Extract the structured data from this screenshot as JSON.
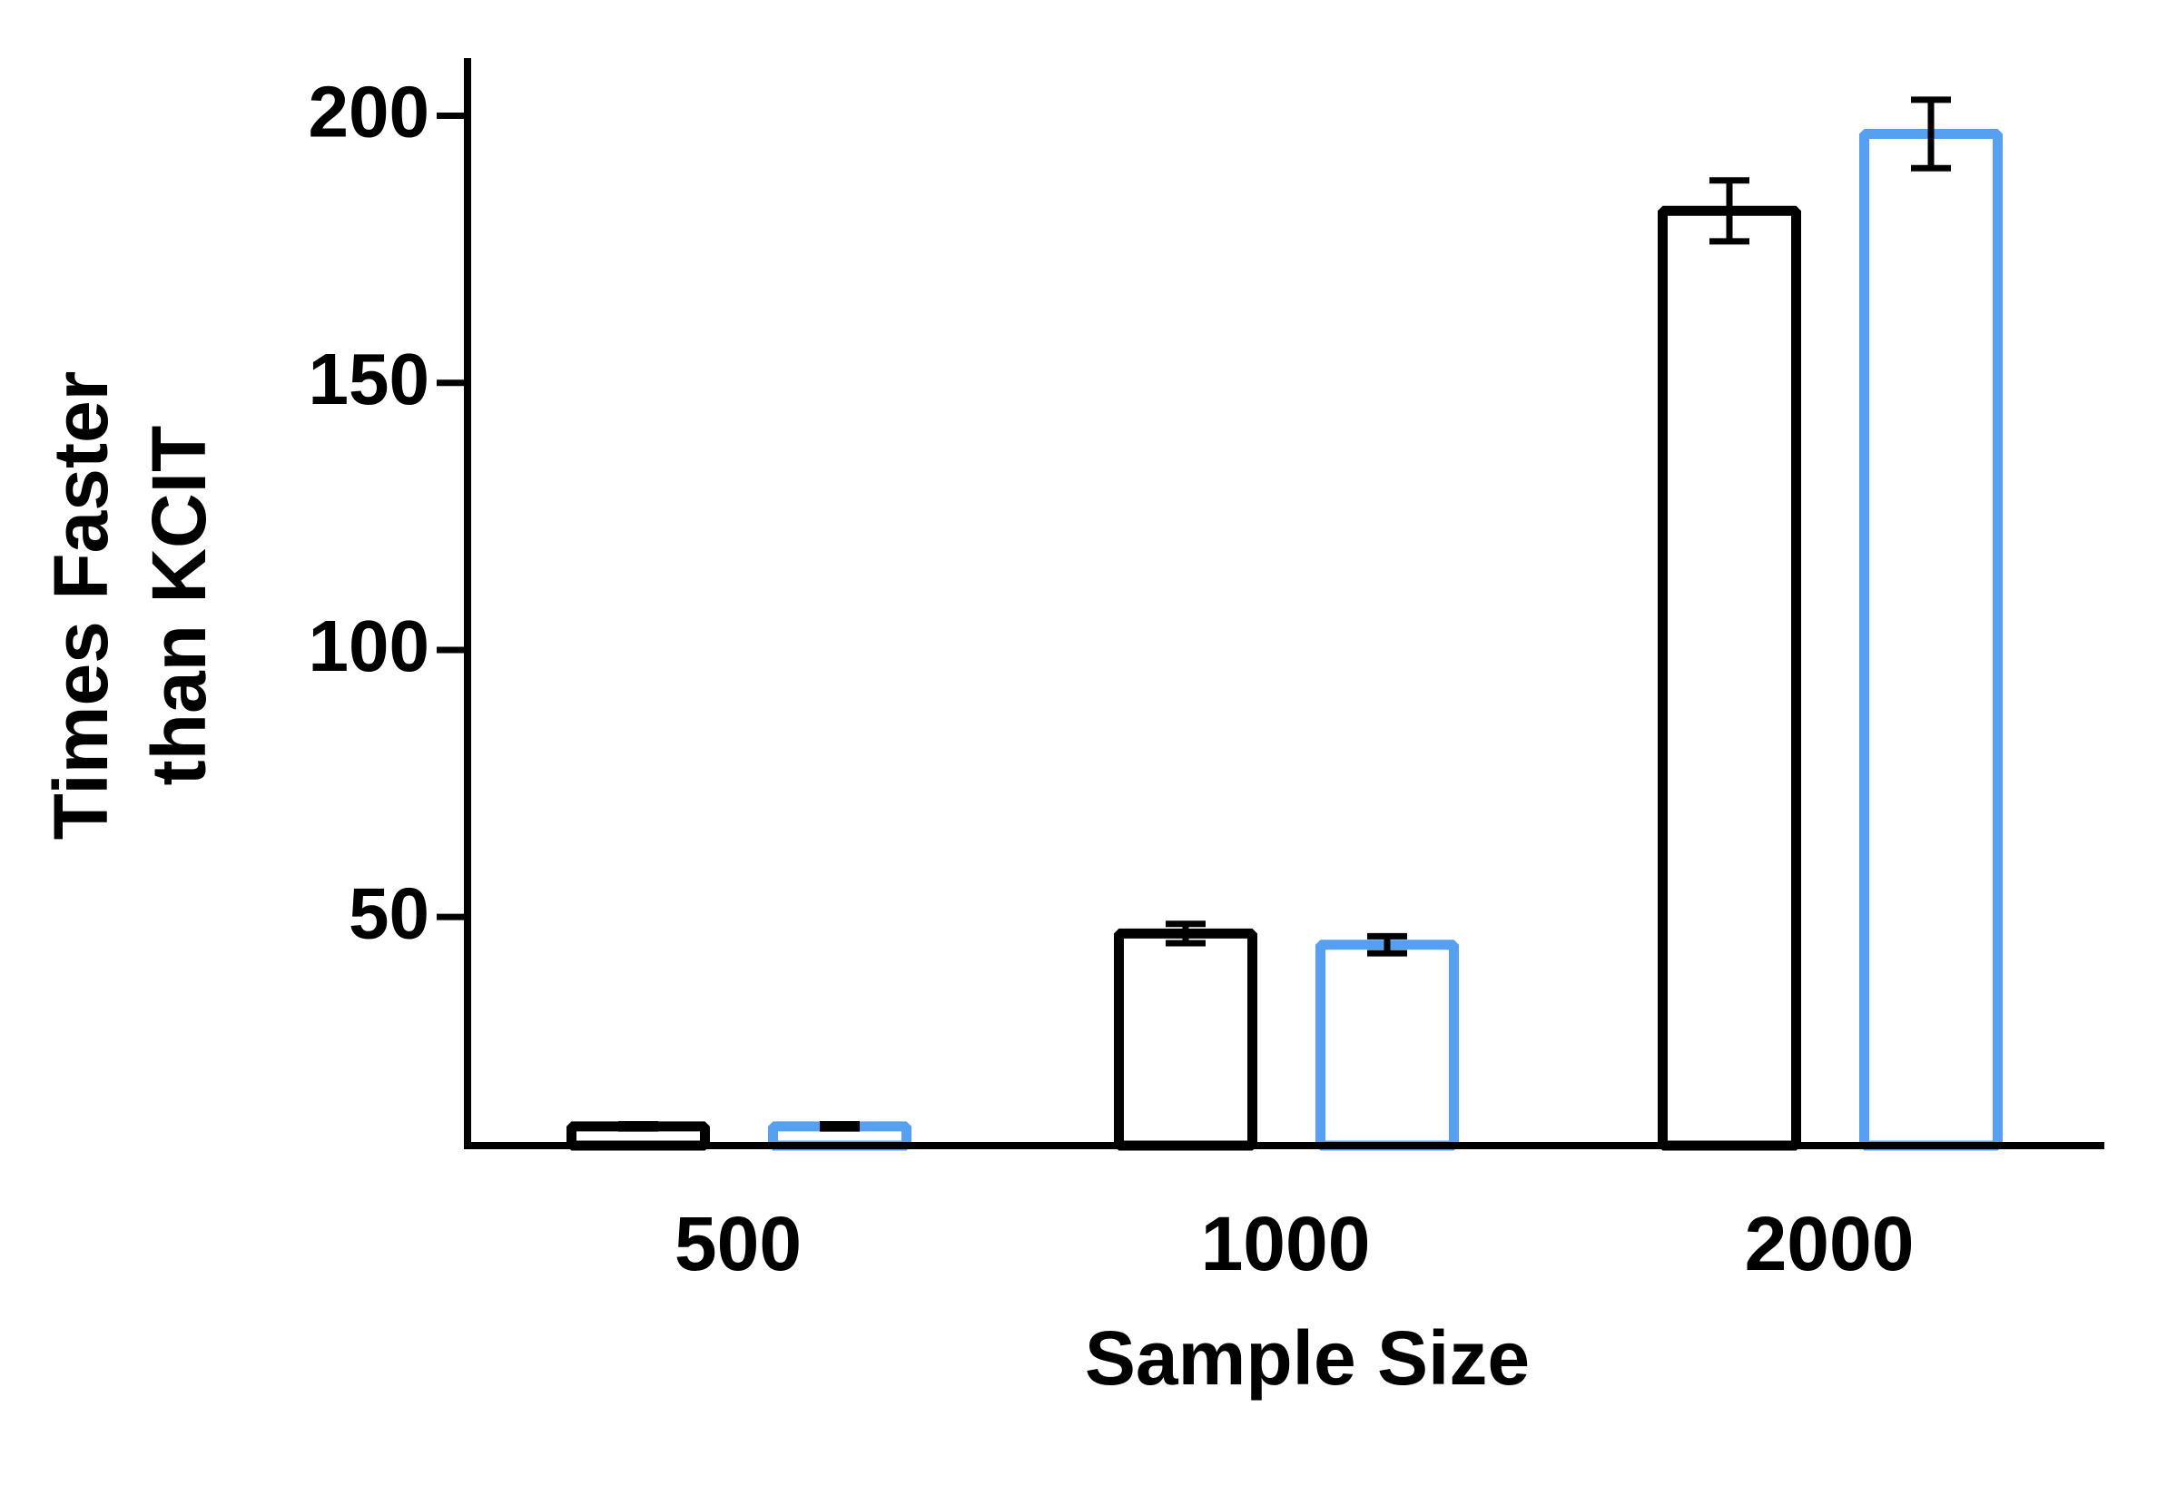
{
  "chart_data": {
    "type": "bar",
    "xlabel": "Sample Size",
    "ylabel": [
      "Times Faster",
      "than KCIT"
    ],
    "categories": [
      "500",
      "1000",
      "2000"
    ],
    "series": [
      {
        "color": "#000000",
        "values": [
          10.8,
          46.9,
          182.2
        ],
        "errors": [
          0.4,
          1.8,
          5.7
        ]
      },
      {
        "color": "#55a0f0",
        "values": [
          10.8,
          44.8,
          196.6
        ],
        "errors": [
          0.4,
          1.6,
          6.4
        ]
      }
    ],
    "ylim": [
      7.2,
      210.8
    ],
    "yticks": [
      50,
      100,
      150,
      200
    ],
    "grid": false
  }
}
